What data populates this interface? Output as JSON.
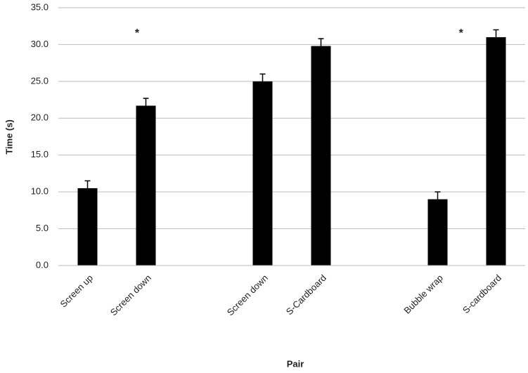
{
  "chart_data": {
    "type": "bar",
    "ylabel": "Time (s)",
    "xlabel": "Pair",
    "categories": [
      "Screen up",
      "Screen down",
      null,
      "Screen down",
      "S-Cardboard",
      null,
      "Bubble wrap",
      "S-cardboard"
    ],
    "values": [
      10.5,
      21.7,
      null,
      25.0,
      29.8,
      null,
      9.0,
      31.0
    ],
    "errors": [
      1.0,
      1.0,
      null,
      1.0,
      1.0,
      null,
      1.0,
      1.0
    ],
    "color": "#000000",
    "annotations": [
      "*",
      "*"
    ],
    "ylim": [
      0,
      35
    ],
    "yticks": [
      {
        "value": 0,
        "label": "0.0"
      },
      {
        "value": 5,
        "label": "5.0"
      },
      {
        "value": 10,
        "label": "10.0"
      },
      {
        "value": 15,
        "label": "15.0"
      },
      {
        "value": 20,
        "label": "20.0"
      },
      {
        "value": 25,
        "label": "25.0"
      },
      {
        "value": 30,
        "label": "30.0"
      },
      {
        "value": 35,
        "label": "35.0"
      }
    ],
    "grid": true
  }
}
